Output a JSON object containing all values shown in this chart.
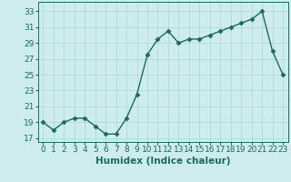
{
  "x": [
    0,
    1,
    2,
    3,
    4,
    5,
    6,
    7,
    8,
    9,
    10,
    11,
    12,
    13,
    14,
    15,
    16,
    17,
    18,
    19,
    20,
    21,
    22,
    23
  ],
  "y": [
    19,
    18,
    19,
    19.5,
    19.5,
    18.5,
    17.5,
    17.5,
    19.5,
    22.5,
    27.5,
    29.5,
    30.5,
    29,
    29.5,
    29.5,
    30,
    30.5,
    31,
    31.5,
    32,
    33,
    28,
    25
  ],
  "line_color": "#1a6b5a",
  "marker": "D",
  "marker_size": 2.5,
  "bg_color": "#ceecea",
  "grid_color": "#a8d8d4",
  "xlabel": "Humidex (Indice chaleur)",
  "xlim": [
    -0.5,
    23.5
  ],
  "ylim": [
    16.5,
    34.2
  ],
  "yticks": [
    17,
    19,
    21,
    23,
    25,
    27,
    29,
    31,
    33
  ],
  "xtick_labels": [
    "0",
    "1",
    "2",
    "3",
    "4",
    "5",
    "6",
    "7",
    "8",
    "9",
    "10",
    "11",
    "12",
    "13",
    "14",
    "15",
    "16",
    "17",
    "18",
    "19",
    "20",
    "21",
    "22",
    "23"
  ],
  "xlabel_fontsize": 7.5,
  "tick_fontsize": 6.5
}
